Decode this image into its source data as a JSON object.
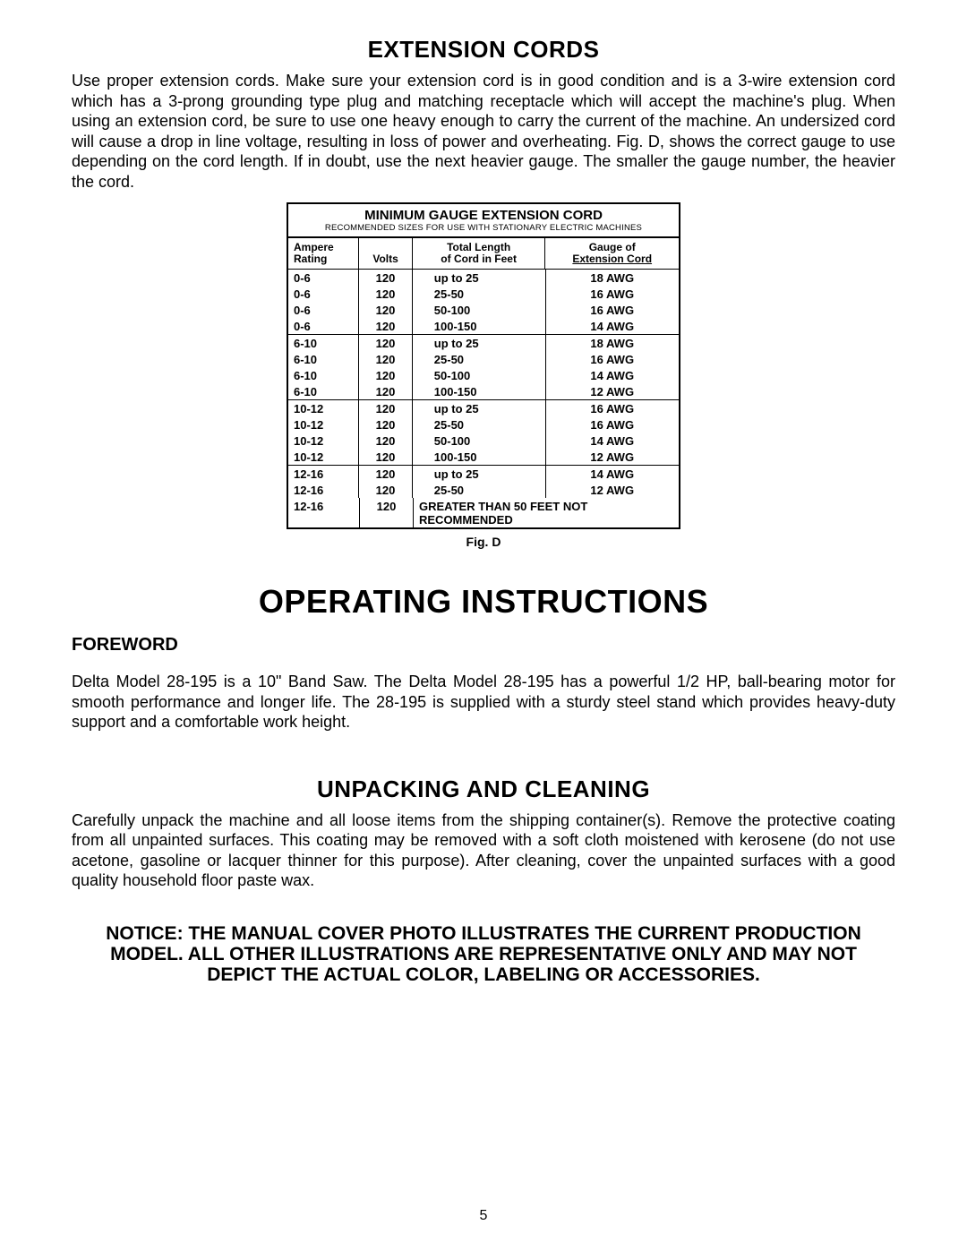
{
  "extension": {
    "heading": "EXTENSION CORDS",
    "body": "Use proper extension cords. Make sure your extension cord is in good condition and is a 3-wire extension cord which has a 3-prong grounding type plug and matching receptacle which will accept the machine's plug. When using an extension cord, be sure to use one heavy enough to carry the current of the machine. An undersized cord will cause a drop in line voltage, resulting in loss of power and overheating. Fig. D, shows the correct gauge to use depending on the cord length. If in doubt, use the next heavier gauge. The smaller the gauge number, the heavier the cord."
  },
  "table": {
    "title": "MINIMUM GAUGE EXTENSION CORD",
    "subtitle": "RECOMMENDED SIZES FOR USE WITH STATIONARY ELECTRIC MACHINES",
    "headers": {
      "ampere1": "Ampere",
      "ampere2": "Rating",
      "volts": "Volts",
      "length1": "Total Length",
      "length2": "of Cord in Feet",
      "gauge1": "Gauge of",
      "gauge2": "Extension Cord"
    },
    "groups": [
      {
        "rows": [
          {
            "a": "0-6",
            "v": "120",
            "l": "up to 25",
            "g": "18 AWG"
          },
          {
            "a": "0-6",
            "v": "120",
            "l": "25-50",
            "g": "16 AWG"
          },
          {
            "a": "0-6",
            "v": "120",
            "l": "50-100",
            "g": "16 AWG"
          },
          {
            "a": "0-6",
            "v": "120",
            "l": "100-150",
            "g": "14 AWG"
          }
        ]
      },
      {
        "rows": [
          {
            "a": "6-10",
            "v": "120",
            "l": "up to 25",
            "g": "18 AWG"
          },
          {
            "a": "6-10",
            "v": "120",
            "l": "25-50",
            "g": "16 AWG"
          },
          {
            "a": "6-10",
            "v": "120",
            "l": "50-100",
            "g": "14 AWG"
          },
          {
            "a": "6-10",
            "v": "120",
            "l": "100-150",
            "g": "12 AWG"
          }
        ]
      },
      {
        "rows": [
          {
            "a": "10-12",
            "v": "120",
            "l": "up to 25",
            "g": "16 AWG"
          },
          {
            "a": "10-12",
            "v": "120",
            "l": "25-50",
            "g": "16 AWG"
          },
          {
            "a": "10-12",
            "v": "120",
            "l": "50-100",
            "g": "14 AWG"
          },
          {
            "a": "10-12",
            "v": "120",
            "l": "100-150",
            "g": "12 AWG"
          }
        ]
      },
      {
        "rows": [
          {
            "a": "12-16",
            "v": "120",
            "l": "up to 25",
            "g": "14 AWG"
          },
          {
            "a": "12-16",
            "v": "120",
            "l": "25-50",
            "g": "12 AWG"
          }
        ],
        "note_row": {
          "a": "12-16",
          "v": "120",
          "note": "GREATER THAN 50 FEET NOT RECOMMENDED"
        }
      }
    ],
    "fig": "Fig. D"
  },
  "operating": {
    "heading": "OPERATING INSTRUCTIONS",
    "foreword_label": "FOREWORD",
    "foreword_body": "Delta Model 28-195 is a 10\" Band Saw. The Delta Model 28-195 has a powerful 1/2 HP, ball-bearing motor for smooth performance and longer life. The 28-195 is supplied with a sturdy steel stand which provides heavy-duty support and a comfortable work height."
  },
  "unpacking": {
    "heading": "UNPACKING AND CLEANING",
    "body": "Carefully unpack the machine and all loose items from the shipping container(s). Remove the protective coating from all unpainted surfaces. This coating may be removed with a soft cloth moistened with kerosene (do not use acetone, gasoline or lacquer thinner for this purpose). After cleaning, cover the unpainted surfaces with a good quality household floor paste wax."
  },
  "notice": "NOTICE: THE MANUAL COVER PHOTO ILLUSTRATES THE CURRENT PRODUCTION MODEL. ALL OTHER ILLUSTRATIONS ARE REPRESENTATIVE ONLY AND MAY NOT DEPICT THE ACTUAL COLOR, LABELING OR ACCESSORIES.",
  "page_number": "5"
}
